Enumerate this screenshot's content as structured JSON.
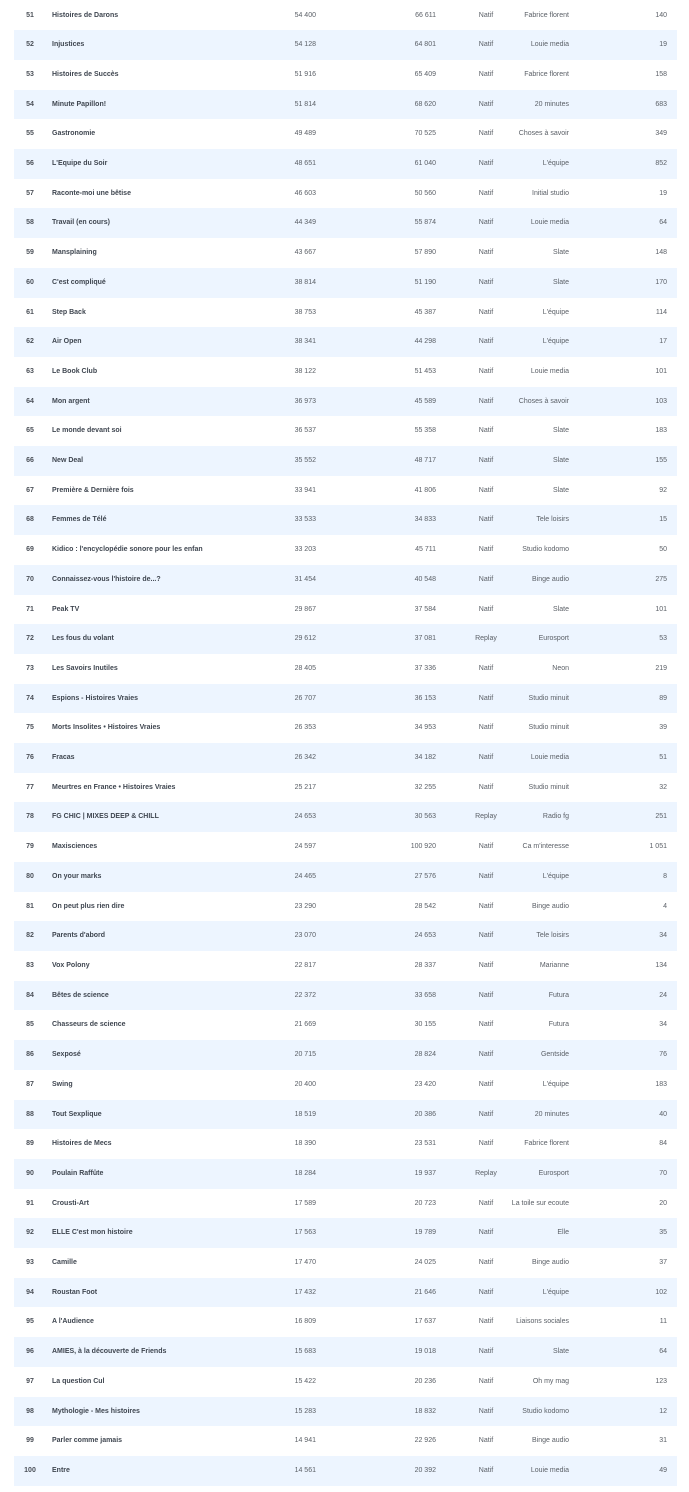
{
  "table": {
    "colors": {
      "row_alt": "#edf5ff",
      "text": "#5a5f66"
    },
    "rows": [
      {
        "rank": "51",
        "name": "Histoires de Darons",
        "v1": "54 400",
        "v2": "66 611",
        "type": "Natif",
        "publisher": "Fabrice florent",
        "count": "140"
      },
      {
        "rank": "52",
        "name": "Injustices",
        "v1": "54 128",
        "v2": "64 801",
        "type": "Natif",
        "publisher": "Louie media",
        "count": "19"
      },
      {
        "rank": "53",
        "name": "Histoires de Succès",
        "v1": "51 916",
        "v2": "65 409",
        "type": "Natif",
        "publisher": "Fabrice florent",
        "count": "158"
      },
      {
        "rank": "54",
        "name": "Minute Papillon!",
        "v1": "51 814",
        "v2": "68 620",
        "type": "Natif",
        "publisher": "20 minutes",
        "count": "683"
      },
      {
        "rank": "55",
        "name": "Gastronomie",
        "v1": "49 489",
        "v2": "70 525",
        "type": "Natif",
        "publisher": "Choses à savoir",
        "count": "349"
      },
      {
        "rank": "56",
        "name": "L'Equipe du Soir",
        "v1": "48 651",
        "v2": "61 040",
        "type": "Natif",
        "publisher": "L'équipe",
        "count": "852"
      },
      {
        "rank": "57",
        "name": "Raconte-moi une bêtise",
        "v1": "46 603",
        "v2": "50 560",
        "type": "Natif",
        "publisher": "Initial studio",
        "count": "19"
      },
      {
        "rank": "58",
        "name": "Travail (en cours)",
        "v1": "44 349",
        "v2": "55 874",
        "type": "Natif",
        "publisher": "Louie media",
        "count": "64"
      },
      {
        "rank": "59",
        "name": "Mansplaining",
        "v1": "43 667",
        "v2": "57 890",
        "type": "Natif",
        "publisher": "Slate",
        "count": "148"
      },
      {
        "rank": "60",
        "name": "C'est compliqué",
        "v1": "38 814",
        "v2": "51 190",
        "type": "Natif",
        "publisher": "Slate",
        "count": "170"
      },
      {
        "rank": "61",
        "name": "Step Back",
        "v1": "38 753",
        "v2": "45 387",
        "type": "Natif",
        "publisher": "L'équipe",
        "count": "114"
      },
      {
        "rank": "62",
        "name": "Air Open",
        "v1": "38 341",
        "v2": "44 298",
        "type": "Natif",
        "publisher": "L'équipe",
        "count": "17"
      },
      {
        "rank": "63",
        "name": "Le Book Club",
        "v1": "38 122",
        "v2": "51 453",
        "type": "Natif",
        "publisher": "Louie media",
        "count": "101"
      },
      {
        "rank": "64",
        "name": "Mon argent",
        "v1": "36 973",
        "v2": "45 589",
        "type": "Natif",
        "publisher": "Choses à savoir",
        "count": "103"
      },
      {
        "rank": "65",
        "name": "Le monde devant soi",
        "v1": "36 537",
        "v2": "55 358",
        "type": "Natif",
        "publisher": "Slate",
        "count": "183"
      },
      {
        "rank": "66",
        "name": "New Deal",
        "v1": "35 552",
        "v2": "48 717",
        "type": "Natif",
        "publisher": "Slate",
        "count": "155"
      },
      {
        "rank": "67",
        "name": "Première & Dernière fois",
        "v1": "33 941",
        "v2": "41 806",
        "type": "Natif",
        "publisher": "Slate",
        "count": "92"
      },
      {
        "rank": "68",
        "name": "Femmes de Télé",
        "v1": "33 533",
        "v2": "34 833",
        "type": "Natif",
        "publisher": "Tele loisirs",
        "count": "15"
      },
      {
        "rank": "69",
        "name": "Kidico : l'encyclopédie sonore pour les enfan",
        "v1": "33 203",
        "v2": "45 711",
        "type": "Natif",
        "publisher": "Studio kodomo",
        "count": "50"
      },
      {
        "rank": "70",
        "name": "Connaissez-vous l'histoire de...?",
        "v1": "31 454",
        "v2": "40 548",
        "type": "Natif",
        "publisher": "Binge audio",
        "count": "275"
      },
      {
        "rank": "71",
        "name": "Peak TV",
        "v1": "29 867",
        "v2": "37 584",
        "type": "Natif",
        "publisher": "Slate",
        "count": "101"
      },
      {
        "rank": "72",
        "name": "Les fous du volant",
        "v1": "29 612",
        "v2": "37 081",
        "type": "Replay",
        "publisher": "Eurosport",
        "count": "53"
      },
      {
        "rank": "73",
        "name": "Les Savoirs Inutiles",
        "v1": "28 405",
        "v2": "37 336",
        "type": "Natif",
        "publisher": "Neon",
        "count": "219"
      },
      {
        "rank": "74",
        "name": "Espions - Histoires Vraies",
        "v1": "26 707",
        "v2": "36 153",
        "type": "Natif",
        "publisher": "Studio minuit",
        "count": "89"
      },
      {
        "rank": "75",
        "name": "Morts Insolites • Histoires Vraies",
        "v1": "26 353",
        "v2": "34 953",
        "type": "Natif",
        "publisher": "Studio minuit",
        "count": "39"
      },
      {
        "rank": "76",
        "name": "Fracas",
        "v1": "26 342",
        "v2": "34 182",
        "type": "Natif",
        "publisher": "Louie media",
        "count": "51"
      },
      {
        "rank": "77",
        "name": "Meurtres en France • Histoires Vraies",
        "v1": "25 217",
        "v2": "32 255",
        "type": "Natif",
        "publisher": "Studio minuit",
        "count": "32"
      },
      {
        "rank": "78",
        "name": "FG CHIC | MIXES DEEP & CHILL",
        "v1": "24 653",
        "v2": "30 563",
        "type": "Replay",
        "publisher": "Radio fg",
        "count": "251"
      },
      {
        "rank": "79",
        "name": "Maxisciences",
        "v1": "24 597",
        "v2": "100 920",
        "type": "Natif",
        "publisher": "Ca m'interesse",
        "count": "1 051"
      },
      {
        "rank": "80",
        "name": "On your marks",
        "v1": "24 465",
        "v2": "27 576",
        "type": "Natif",
        "publisher": "L'équipe",
        "count": "8"
      },
      {
        "rank": "81",
        "name": "On peut plus rien dire",
        "v1": "23 290",
        "v2": "28 542",
        "type": "Natif",
        "publisher": "Binge audio",
        "count": "4"
      },
      {
        "rank": "82",
        "name": "Parents d'abord",
        "v1": "23 070",
        "v2": "24 653",
        "type": "Natif",
        "publisher": "Tele loisirs",
        "count": "34"
      },
      {
        "rank": "83",
        "name": "Vox Polony",
        "v1": "22 817",
        "v2": "28 337",
        "type": "Natif",
        "publisher": "Marianne",
        "count": "134"
      },
      {
        "rank": "84",
        "name": "Bêtes de science",
        "v1": "22 372",
        "v2": "33 658",
        "type": "Natif",
        "publisher": "Futura",
        "count": "24"
      },
      {
        "rank": "85",
        "name": "Chasseurs de science",
        "v1": "21 669",
        "v2": "30 155",
        "type": "Natif",
        "publisher": "Futura",
        "count": "34"
      },
      {
        "rank": "86",
        "name": "Sexposé",
        "v1": "20 715",
        "v2": "28 824",
        "type": "Natif",
        "publisher": "Gentside",
        "count": "76"
      },
      {
        "rank": "87",
        "name": "Swing",
        "v1": "20 400",
        "v2": "23 420",
        "type": "Natif",
        "publisher": "L'équipe",
        "count": "183"
      },
      {
        "rank": "88",
        "name": "Tout Sexplique",
        "v1": "18 519",
        "v2": "20 386",
        "type": "Natif",
        "publisher": "20 minutes",
        "count": "40"
      },
      {
        "rank": "89",
        "name": "Histoires de Mecs",
        "v1": "18 390",
        "v2": "23 531",
        "type": "Natif",
        "publisher": "Fabrice florent",
        "count": "84"
      },
      {
        "rank": "90",
        "name": "Poulain Raffûte",
        "v1": "18 284",
        "v2": "19 937",
        "type": "Replay",
        "publisher": "Eurosport",
        "count": "70"
      },
      {
        "rank": "91",
        "name": "Crousti-Art",
        "v1": "17 589",
        "v2": "20 723",
        "type": "Natif",
        "publisher": "La toile sur ecoute",
        "count": "20"
      },
      {
        "rank": "92",
        "name": "ELLE C'est mon histoire",
        "v1": "17 563",
        "v2": "19 789",
        "type": "Natif",
        "publisher": "Elle",
        "count": "35"
      },
      {
        "rank": "93",
        "name": "Camille",
        "v1": "17 470",
        "v2": "24 025",
        "type": "Natif",
        "publisher": "Binge audio",
        "count": "37"
      },
      {
        "rank": "94",
        "name": "Roustan Foot",
        "v1": "17 432",
        "v2": "21 646",
        "type": "Natif",
        "publisher": "L'équipe",
        "count": "102"
      },
      {
        "rank": "95",
        "name": "A l'Audience",
        "v1": "16 809",
        "v2": "17 637",
        "type": "Natif",
        "publisher": "Liaisons sociales",
        "count": "11"
      },
      {
        "rank": "96",
        "name": "AMIES, à la découverte de Friends",
        "v1": "15 683",
        "v2": "19 018",
        "type": "Natif",
        "publisher": "Slate",
        "count": "64"
      },
      {
        "rank": "97",
        "name": "La question Cul",
        "v1": "15 422",
        "v2": "20 236",
        "type": "Natif",
        "publisher": "Oh my mag",
        "count": "123"
      },
      {
        "rank": "98",
        "name": "Mythologie - Mes histoires",
        "v1": "15 283",
        "v2": "18 832",
        "type": "Natif",
        "publisher": "Studio kodomo",
        "count": "12"
      },
      {
        "rank": "99",
        "name": "Parler comme jamais",
        "v1": "14 941",
        "v2": "22 926",
        "type": "Natif",
        "publisher": "Binge audio",
        "count": "31"
      },
      {
        "rank": "100",
        "name": "Entre",
        "v1": "14 561",
        "v2": "20 392",
        "type": "Natif",
        "publisher": "Louie media",
        "count": "49"
      }
    ]
  }
}
